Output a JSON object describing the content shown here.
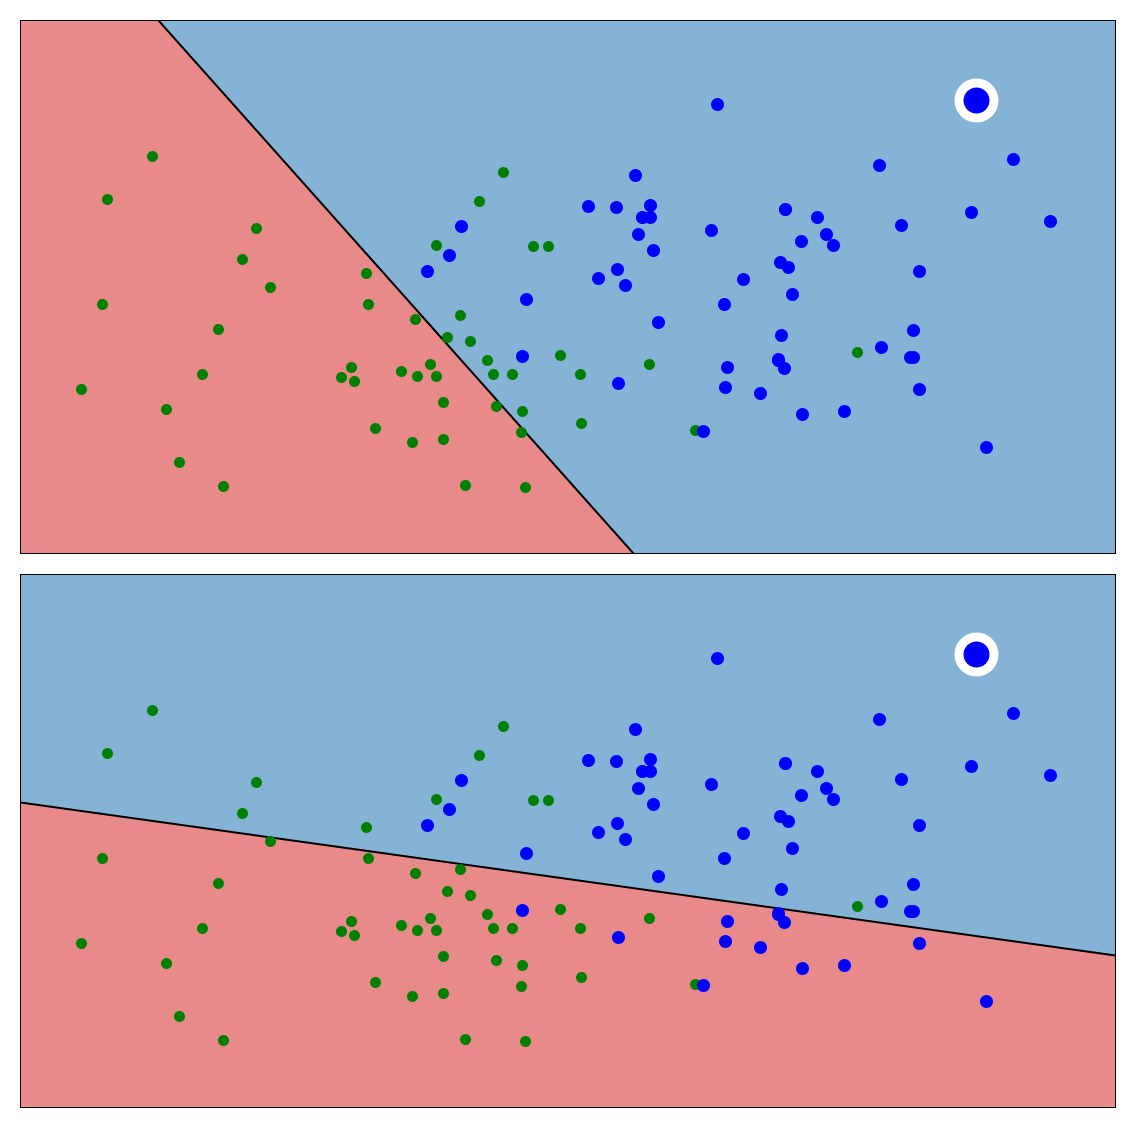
{
  "colors": {
    "region_a": "#e88a8a",
    "region_b": "#84b3d6",
    "class_green": "#008000",
    "class_blue": "#0000ff",
    "boundary": "#000000",
    "highlight_ring": "#ffffff"
  },
  "chart_data": [
    {
      "type": "scatter",
      "title": "",
      "xlabel": "",
      "ylabel": "",
      "xlim": [
        0,
        1095
      ],
      "ylim": [
        0,
        533
      ],
      "ticks": "none",
      "grid": false,
      "legend": "none",
      "boundary": {
        "x1": 138,
        "y1": 533,
        "x2": 613,
        "y2": 0
      },
      "region_below_boundary": "red",
      "series": [
        {
          "class": "green",
          "points": [
            [
              132,
              397
            ],
            [
              87,
              354
            ],
            [
              236,
              325
            ],
            [
              222,
              294
            ],
            [
              250,
              266
            ],
            [
              82,
              249
            ],
            [
              198,
              224
            ],
            [
              182,
              179
            ],
            [
              61,
              164
            ],
            [
              146,
              144
            ],
            [
              159,
              91
            ],
            [
              203,
              67
            ],
            [
              483,
              381
            ],
            [
              459,
              352
            ],
            [
              416,
              308
            ],
            [
              513,
              307
            ],
            [
              528,
              307
            ],
            [
              346,
              280
            ],
            [
              348,
              249
            ],
            [
              450,
              212
            ],
            [
              440,
              238
            ],
            [
              395,
              234
            ],
            [
              427,
              216
            ],
            [
              410,
              189
            ],
            [
              331,
              186
            ],
            [
              321,
              176
            ],
            [
              334,
              172
            ],
            [
              381,
              182
            ],
            [
              397,
              177
            ],
            [
              416,
              177
            ],
            [
              473,
              179
            ],
            [
              492,
              179
            ],
            [
              467,
              193
            ],
            [
              540,
              198
            ],
            [
              560,
              179
            ],
            [
              629,
              189
            ],
            [
              837,
              201
            ],
            [
              423,
              151
            ],
            [
              476,
              147
            ],
            [
              502,
              142
            ],
            [
              501,
              121
            ],
            [
              561,
              130
            ],
            [
              355,
              125
            ],
            [
              392,
              111
            ],
            [
              423,
              114
            ],
            [
              675,
              123
            ],
            [
              445,
              68
            ],
            [
              505,
              66
            ]
          ]
        },
        {
          "class": "blue",
          "points": [
            [
              697,
              449
            ],
            [
              859,
              388
            ],
            [
              993,
              394
            ],
            [
              881,
              328
            ],
            [
              1030,
              332
            ],
            [
              951,
              341
            ],
            [
              615,
              378
            ],
            [
              568,
              347
            ],
            [
              596,
              346
            ],
            [
              622,
              336
            ],
            [
              630,
              348
            ],
            [
              622,
              336
            ],
            [
              630,
              336
            ],
            [
              618,
              319
            ],
            [
              633,
              303
            ],
            [
              691,
              323
            ],
            [
              765,
              344
            ],
            [
              797,
              336
            ],
            [
              765,
              344
            ],
            [
              806,
              319
            ],
            [
              813,
              308
            ],
            [
              781,
              312
            ],
            [
              760,
              291
            ],
            [
              768,
              286
            ],
            [
              899,
              282
            ],
            [
              597,
              284
            ],
            [
              605,
              268
            ],
            [
              578,
              275
            ],
            [
              723,
              274
            ],
            [
              772,
              259
            ],
            [
              704,
              249
            ],
            [
              638,
              231
            ],
            [
              506,
              254
            ],
            [
              441,
              327
            ],
            [
              429,
              298
            ],
            [
              407,
              282
            ],
            [
              893,
              223
            ],
            [
              761,
              218
            ],
            [
              893,
              196
            ],
            [
              861,
              206
            ],
            [
              758,
              194
            ],
            [
              502,
              197
            ],
            [
              890,
              196
            ],
            [
              707,
              186
            ],
            [
              705,
              166
            ],
            [
              758,
              193
            ],
            [
              764,
              185
            ],
            [
              740,
              160
            ],
            [
              824,
              142
            ],
            [
              899,
              164
            ],
            [
              782,
              139
            ],
            [
              966,
              106
            ],
            [
              683,
              122
            ],
            [
              598,
              170
            ]
          ]
        },
        {
          "class": "blue-highlight",
          "points": [
            [
              956,
              453
            ]
          ]
        }
      ]
    },
    {
      "type": "scatter",
      "title": "",
      "xlabel": "",
      "ylabel": "",
      "xlim": [
        0,
        1095
      ],
      "ylim": [
        0,
        533
      ],
      "ticks": "none",
      "grid": false,
      "legend": "none",
      "boundary": {
        "x1": 0,
        "y1": 305,
        "x2": 1095,
        "y2": 152
      },
      "region_below_boundary": "red",
      "series": [
        {
          "class": "green",
          "points": [
            [
              132,
              397
            ],
            [
              87,
              354
            ],
            [
              236,
              325
            ],
            [
              222,
              294
            ],
            [
              250,
              266
            ],
            [
              82,
              249
            ],
            [
              198,
              224
            ],
            [
              182,
              179
            ],
            [
              61,
              164
            ],
            [
              146,
              144
            ],
            [
              159,
              91
            ],
            [
              203,
              67
            ],
            [
              483,
              381
            ],
            [
              459,
              352
            ],
            [
              416,
              308
            ],
            [
              513,
              307
            ],
            [
              528,
              307
            ],
            [
              346,
              280
            ],
            [
              348,
              249
            ],
            [
              450,
              212
            ],
            [
              440,
              238
            ],
            [
              395,
              234
            ],
            [
              427,
              216
            ],
            [
              410,
              189
            ],
            [
              331,
              186
            ],
            [
              321,
              176
            ],
            [
              334,
              172
            ],
            [
              381,
              182
            ],
            [
              397,
              177
            ],
            [
              416,
              177
            ],
            [
              473,
              179
            ],
            [
              492,
              179
            ],
            [
              467,
              193
            ],
            [
              540,
              198
            ],
            [
              560,
              179
            ],
            [
              629,
              189
            ],
            [
              837,
              201
            ],
            [
              423,
              151
            ],
            [
              476,
              147
            ],
            [
              502,
              142
            ],
            [
              501,
              121
            ],
            [
              561,
              130
            ],
            [
              355,
              125
            ],
            [
              392,
              111
            ],
            [
              423,
              114
            ],
            [
              675,
              123
            ],
            [
              445,
              68
            ],
            [
              505,
              66
            ]
          ]
        },
        {
          "class": "blue",
          "points": [
            [
              697,
              449
            ],
            [
              859,
              388
            ],
            [
              993,
              394
            ],
            [
              881,
              328
            ],
            [
              1030,
              332
            ],
            [
              951,
              341
            ],
            [
              615,
              378
            ],
            [
              568,
              347
            ],
            [
              596,
              346
            ],
            [
              622,
              336
            ],
            [
              630,
              348
            ],
            [
              622,
              336
            ],
            [
              630,
              336
            ],
            [
              618,
              319
            ],
            [
              633,
              303
            ],
            [
              691,
              323
            ],
            [
              765,
              344
            ],
            [
              797,
              336
            ],
            [
              765,
              344
            ],
            [
              806,
              319
            ],
            [
              813,
              308
            ],
            [
              781,
              312
            ],
            [
              760,
              291
            ],
            [
              768,
              286
            ],
            [
              899,
              282
            ],
            [
              597,
              284
            ],
            [
              605,
              268
            ],
            [
              578,
              275
            ],
            [
              723,
              274
            ],
            [
              772,
              259
            ],
            [
              704,
              249
            ],
            [
              638,
              231
            ],
            [
              506,
              254
            ],
            [
              441,
              327
            ],
            [
              429,
              298
            ],
            [
              407,
              282
            ],
            [
              893,
              223
            ],
            [
              761,
              218
            ],
            [
              893,
              196
            ],
            [
              861,
              206
            ],
            [
              758,
              194
            ],
            [
              502,
              197
            ],
            [
              890,
              196
            ],
            [
              707,
              186
            ],
            [
              705,
              166
            ],
            [
              758,
              193
            ],
            [
              764,
              185
            ],
            [
              740,
              160
            ],
            [
              824,
              142
            ],
            [
              899,
              164
            ],
            [
              782,
              139
            ],
            [
              966,
              106
            ],
            [
              683,
              122
            ],
            [
              598,
              170
            ]
          ]
        },
        {
          "class": "blue-highlight",
          "points": [
            [
              956,
              453
            ]
          ]
        }
      ]
    }
  ]
}
